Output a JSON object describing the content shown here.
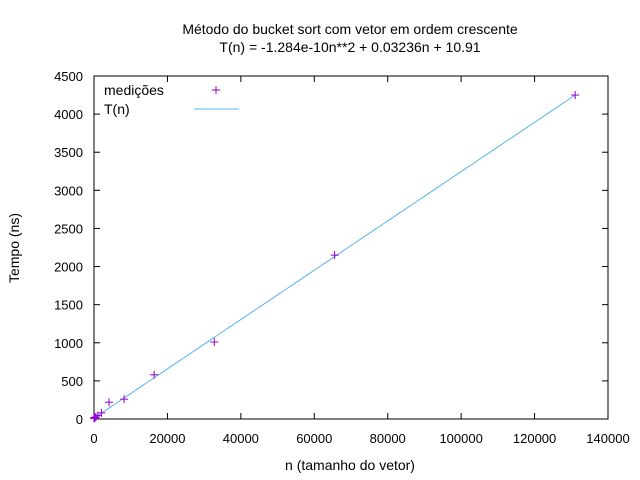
{
  "chart_data": {
    "type": "scatter",
    "title": "Método do bucket sort com vetor em ordem crescente",
    "subtitle": "T(n) = -1.284e-10n**2 + 0.03236n + 10.91",
    "xlabel": "n (tamanho do vetor)",
    "ylabel": "Tempo (ns)",
    "xlim": [
      0,
      140000
    ],
    "ylim": [
      0,
      4500
    ],
    "x_ticks": [
      0,
      20000,
      40000,
      60000,
      80000,
      100000,
      120000,
      140000
    ],
    "y_ticks": [
      0,
      500,
      1000,
      1500,
      2000,
      2500,
      3000,
      3500,
      4000,
      4500
    ],
    "grid": false,
    "legend_position": "top-left",
    "series": [
      {
        "name": "medições",
        "kind": "points",
        "marker": "plus",
        "color": "#9400d3",
        "x": [
          16,
          32,
          64,
          128,
          256,
          512,
          1024,
          2048,
          4096,
          8192,
          16384,
          32768,
          65536,
          131072
        ],
        "y": [
          8,
          10,
          12,
          15,
          20,
          25,
          45,
          80,
          220,
          260,
          580,
          1010,
          2150,
          4250
        ]
      },
      {
        "name": "T(n)",
        "kind": "fit",
        "color": "#56b4e9",
        "coefficients": {
          "a": -1.284e-10,
          "b": 0.03236,
          "c": 10.91
        },
        "x_range": [
          0,
          131072
        ]
      }
    ]
  }
}
